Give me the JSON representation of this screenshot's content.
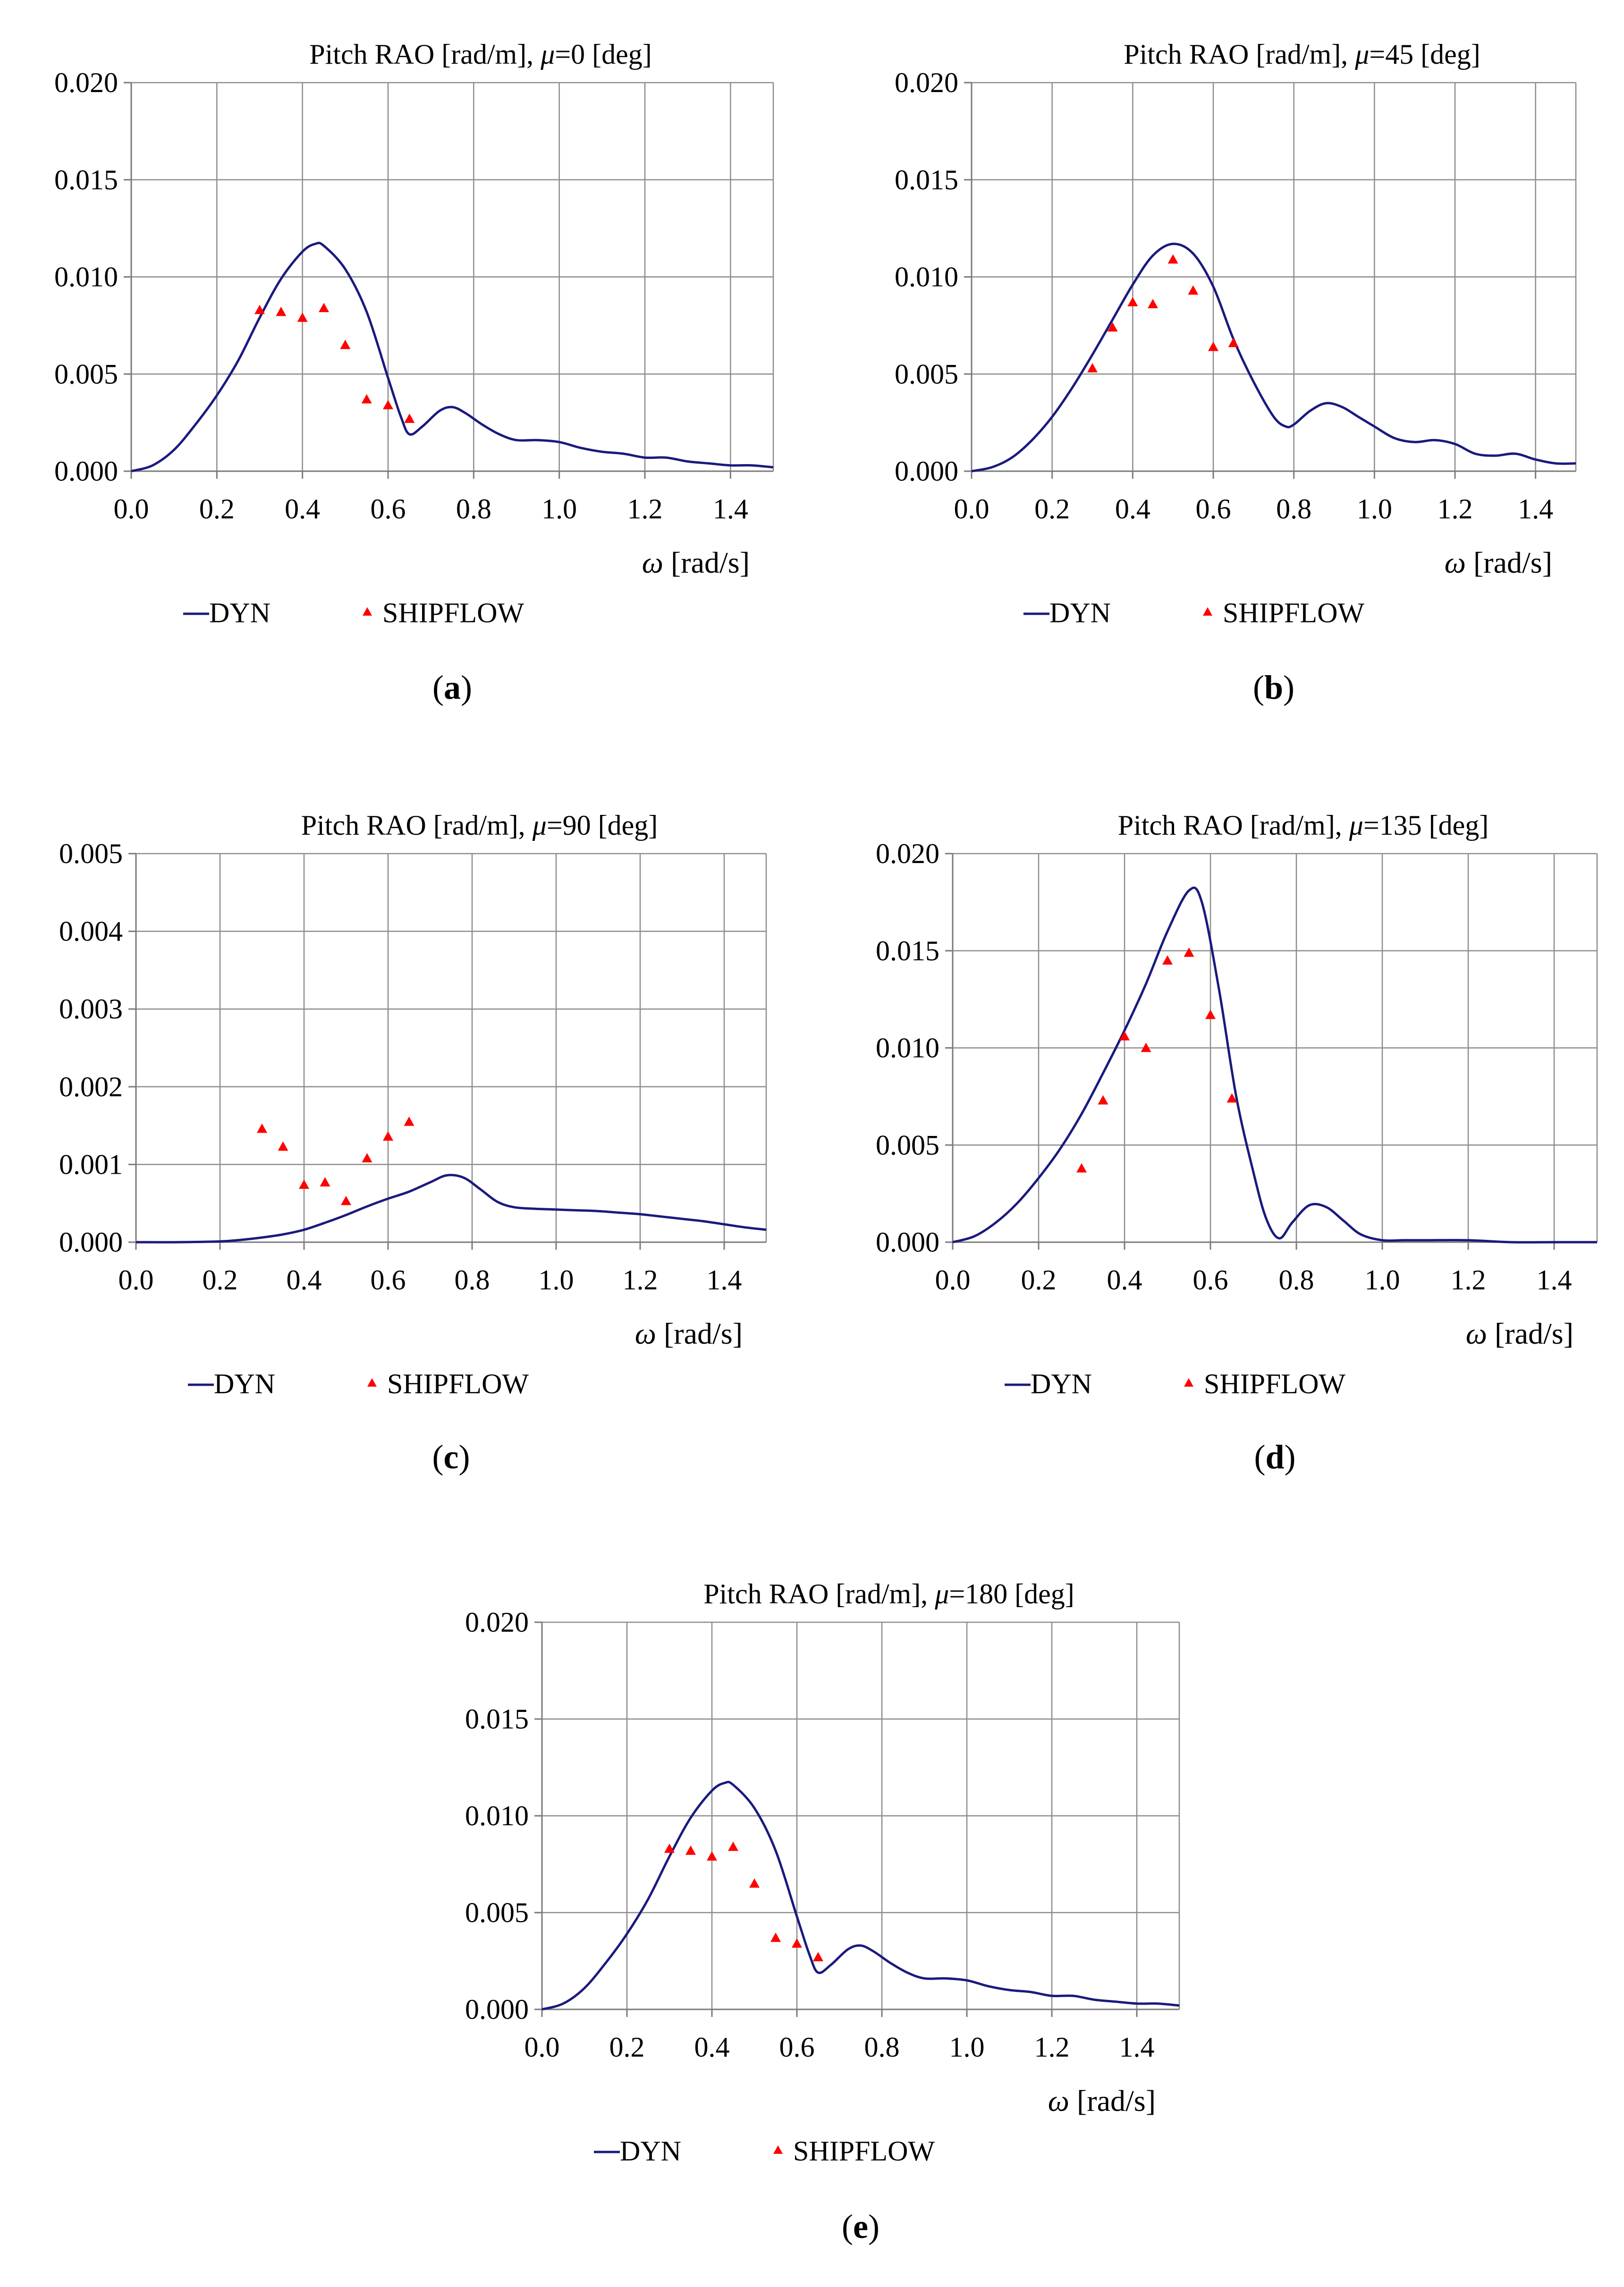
{
  "chart_data": [
    {
      "type": "line",
      "id": "a",
      "title": "Pitch RAO [rad/m], μ=0 [deg]",
      "xlabel": "ω [rad/s]",
      "ylabel": "",
      "xlim": [
        0,
        1.5
      ],
      "ylim": [
        0,
        0.02
      ],
      "xticks": [
        "0.0",
        "0.2",
        "0.4",
        "0.6",
        "0.8",
        "1.0",
        "1.2",
        "1.4"
      ],
      "yticks": [
        "0.000",
        "0.005",
        "0.010",
        "0.015",
        "0.020"
      ],
      "legend": [
        "DYN",
        "SHIPFLOW"
      ],
      "caption_letter": "a",
      "series": [
        {
          "name": "DYN",
          "kind": "line",
          "x": [
            0,
            0.05,
            0.1,
            0.15,
            0.2,
            0.25,
            0.3,
            0.35,
            0.4,
            0.43,
            0.45,
            0.5,
            0.55,
            0.6,
            0.63,
            0.65,
            0.68,
            0.72,
            0.75,
            0.78,
            0.82,
            0.86,
            0.9,
            0.95,
            1.0,
            1.05,
            1.1,
            1.15,
            1.2,
            1.25,
            1.3,
            1.35,
            1.4,
            1.45,
            1.5
          ],
          "y": [
            0,
            0.0003,
            0.0011,
            0.0024,
            0.0039,
            0.0057,
            0.0079,
            0.0099,
            0.0113,
            0.0117,
            0.0116,
            0.0104,
            0.0082,
            0.0048,
            0.0028,
            0.0019,
            0.0023,
            0.0031,
            0.0033,
            0.003,
            0.0024,
            0.0019,
            0.0016,
            0.0016,
            0.0015,
            0.0012,
            0.001,
            0.0009,
            0.0007,
            0.0007,
            0.0005,
            0.0004,
            0.0003,
            0.0003,
            0.0002
          ]
        },
        {
          "name": "SHIPFLOW",
          "kind": "scatter",
          "x": [
            0.3,
            0.35,
            0.4,
            0.45,
            0.5,
            0.55,
            0.6,
            0.65
          ],
          "y": [
            0.0083,
            0.0082,
            0.0079,
            0.0084,
            0.0065,
            0.0037,
            0.0034,
            0.0027
          ]
        }
      ]
    },
    {
      "type": "line",
      "id": "b",
      "title": "Pitch RAO [rad/m], μ=45 [deg]",
      "xlabel": "ω [rad/s]",
      "ylabel": "",
      "xlim": [
        0,
        1.5
      ],
      "ylim": [
        0,
        0.02
      ],
      "xticks": [
        "0.0",
        "0.2",
        "0.4",
        "0.6",
        "0.8",
        "1.0",
        "1.2",
        "1.4"
      ],
      "yticks": [
        "0.000",
        "0.005",
        "0.010",
        "0.015",
        "0.020"
      ],
      "legend": [
        "DYN",
        "SHIPFLOW"
      ],
      "caption_letter": "b",
      "series": [
        {
          "name": "DYN",
          "kind": "line",
          "x": [
            0,
            0.05,
            0.1,
            0.15,
            0.2,
            0.25,
            0.3,
            0.35,
            0.4,
            0.45,
            0.5,
            0.55,
            0.6,
            0.65,
            0.7,
            0.75,
            0.78,
            0.8,
            0.84,
            0.88,
            0.92,
            0.96,
            1.0,
            1.05,
            1.1,
            1.15,
            1.2,
            1.25,
            1.3,
            1.35,
            1.4,
            1.45,
            1.5
          ],
          "y": [
            0,
            0.0002,
            0.0007,
            0.0016,
            0.0028,
            0.0043,
            0.006,
            0.0078,
            0.0096,
            0.0111,
            0.0117,
            0.0112,
            0.0095,
            0.0068,
            0.0046,
            0.0028,
            0.0023,
            0.0024,
            0.0031,
            0.0035,
            0.0033,
            0.0028,
            0.0023,
            0.0017,
            0.0015,
            0.0016,
            0.0014,
            0.0009,
            0.0008,
            0.0009,
            0.0006,
            0.0004,
            0.0004
          ]
        },
        {
          "name": "SHIPFLOW",
          "kind": "scatter",
          "x": [
            0.3,
            0.35,
            0.4,
            0.45,
            0.5,
            0.55,
            0.6,
            0.65
          ],
          "y": [
            0.0053,
            0.0074,
            0.0087,
            0.0086,
            0.0109,
            0.0093,
            0.0064,
            0.0066
          ]
        }
      ]
    },
    {
      "type": "line",
      "id": "c",
      "title": "Pitch RAO [rad/m], μ=90 [deg]",
      "xlabel": "ω [rad/s]",
      "ylabel": "",
      "xlim": [
        0,
        1.5
      ],
      "ylim": [
        0,
        0.005
      ],
      "xticks": [
        "0.0",
        "0.2",
        "0.4",
        "0.6",
        "0.8",
        "1.0",
        "1.2",
        "1.4"
      ],
      "yticks": [
        "0.000",
        "0.001",
        "0.002",
        "0.003",
        "0.004",
        "0.005"
      ],
      "legend": [
        "DYN",
        "SHIPFLOW"
      ],
      "caption_letter": "c",
      "series": [
        {
          "name": "DYN",
          "kind": "line",
          "x": [
            0,
            0.1,
            0.2,
            0.25,
            0.3,
            0.35,
            0.4,
            0.45,
            0.5,
            0.55,
            0.6,
            0.65,
            0.7,
            0.74,
            0.78,
            0.82,
            0.86,
            0.9,
            0.95,
            1.0,
            1.05,
            1.1,
            1.15,
            1.2,
            1.25,
            1.3,
            1.35,
            1.4,
            1.45,
            1.5
          ],
          "y": [
            0,
            0,
            1e-05,
            3e-05,
            6e-05,
            0.0001,
            0.00016,
            0.00025,
            0.00035,
            0.00046,
            0.00056,
            0.00065,
            0.00077,
            0.00086,
            0.00083,
            0.00068,
            0.00052,
            0.00045,
            0.00043,
            0.00042,
            0.00041,
            0.0004,
            0.00038,
            0.00036,
            0.00033,
            0.0003,
            0.00027,
            0.00023,
            0.00019,
            0.00016
          ]
        },
        {
          "name": "SHIPFLOW",
          "kind": "scatter",
          "x": [
            0.3,
            0.35,
            0.4,
            0.45,
            0.5,
            0.55,
            0.6,
            0.65
          ],
          "y": [
            0.00146,
            0.00123,
            0.00074,
            0.00077,
            0.00053,
            0.00108,
            0.00136,
            0.00155
          ]
        }
      ]
    },
    {
      "type": "line",
      "id": "d",
      "title": "Pitch RAO [rad/m], μ=135 [deg]",
      "xlabel": "ω [rad/s]",
      "ylabel": "",
      "xlim": [
        0,
        1.5
      ],
      "ylim": [
        0,
        0.02
      ],
      "xticks": [
        "0.0",
        "0.2",
        "0.4",
        "0.6",
        "0.8",
        "1.0",
        "1.2",
        "1.4"
      ],
      "yticks": [
        "0.000",
        "0.005",
        "0.010",
        "0.015",
        "0.020"
      ],
      "legend": [
        "DYN",
        "SHIPFLOW"
      ],
      "caption_letter": "d",
      "series": [
        {
          "name": "DYN",
          "kind": "line",
          "x": [
            0,
            0.05,
            0.1,
            0.15,
            0.2,
            0.25,
            0.3,
            0.35,
            0.4,
            0.45,
            0.5,
            0.55,
            0.58,
            0.62,
            0.66,
            0.7,
            0.73,
            0.76,
            0.79,
            0.83,
            0.87,
            0.91,
            0.95,
            1.0,
            1.05,
            1.1,
            1.2,
            1.3,
            1.4,
            1.5
          ],
          "y": [
            0,
            0.0003,
            0.001,
            0.002,
            0.0033,
            0.0048,
            0.0066,
            0.0087,
            0.0109,
            0.0133,
            0.016,
            0.0181,
            0.0175,
            0.013,
            0.0075,
            0.0036,
            0.0012,
            0.0002,
            0.001,
            0.0019,
            0.0018,
            0.0011,
            0.0004,
            0.0001,
            0.0001,
            0.0001,
            0.0001,
            0,
            0,
            0
          ]
        },
        {
          "name": "SHIPFLOW",
          "kind": "scatter",
          "x": [
            0.3,
            0.35,
            0.4,
            0.45,
            0.5,
            0.55,
            0.6,
            0.65
          ],
          "y": [
            0.0038,
            0.0073,
            0.0106,
            0.01,
            0.0145,
            0.0149,
            0.0117,
            0.0074
          ]
        }
      ]
    },
    {
      "type": "line",
      "id": "e",
      "title": "Pitch RAO [rad/m], μ=180 [deg]",
      "xlabel": "ω [rad/s]",
      "ylabel": "",
      "xlim": [
        0,
        1.5
      ],
      "ylim": [
        0,
        0.02
      ],
      "xticks": [
        "0.0",
        "0.2",
        "0.4",
        "0.6",
        "0.8",
        "1.0",
        "1.2",
        "1.4"
      ],
      "yticks": [
        "0.000",
        "0.005",
        "0.010",
        "0.015",
        "0.020"
      ],
      "legend": [
        "DYN",
        "SHIPFLOW"
      ],
      "caption_letter": "e",
      "series": [
        {
          "name": "DYN",
          "kind": "line",
          "x": [
            0,
            0.05,
            0.1,
            0.15,
            0.2,
            0.25,
            0.3,
            0.35,
            0.4,
            0.43,
            0.45,
            0.5,
            0.55,
            0.6,
            0.63,
            0.65,
            0.68,
            0.72,
            0.75,
            0.78,
            0.82,
            0.86,
            0.9,
            0.95,
            1.0,
            1.05,
            1.1,
            1.15,
            1.2,
            1.25,
            1.3,
            1.35,
            1.4,
            1.45,
            1.5
          ],
          "y": [
            0,
            0.0003,
            0.0011,
            0.0024,
            0.0039,
            0.0057,
            0.0079,
            0.0099,
            0.0113,
            0.0117,
            0.0116,
            0.0104,
            0.0082,
            0.0048,
            0.0028,
            0.0019,
            0.0023,
            0.0031,
            0.0033,
            0.003,
            0.0024,
            0.0019,
            0.0016,
            0.0016,
            0.0015,
            0.0012,
            0.001,
            0.0009,
            0.0007,
            0.0007,
            0.0005,
            0.0004,
            0.0003,
            0.0003,
            0.0002
          ]
        },
        {
          "name": "SHIPFLOW",
          "kind": "scatter",
          "x": [
            0.3,
            0.35,
            0.4,
            0.45,
            0.5,
            0.55,
            0.6,
            0.65
          ],
          "y": [
            0.0083,
            0.0082,
            0.0079,
            0.0084,
            0.0065,
            0.0037,
            0.0034,
            0.0027
          ]
        }
      ]
    }
  ]
}
